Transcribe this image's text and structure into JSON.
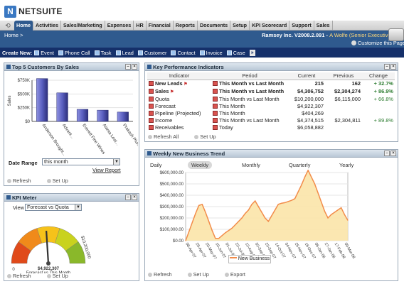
{
  "brand": {
    "name": "NETSUITE",
    "mark": "N"
  },
  "nav": {
    "tabs": [
      "Home",
      "Activities",
      "Sales/Marketing",
      "Expenses",
      "HR",
      "Financial",
      "Reports",
      "Documents",
      "Setup",
      "KPI Scorecard",
      "Support",
      "Sales"
    ],
    "active": "Home"
  },
  "subheader": {
    "breadcrumb": "Home >",
    "account": "Ramsey Inc. V2008.2.091 -",
    "user": "A Wolfe (Senior Executive)",
    "customize": "Customize this Page"
  },
  "create_new": {
    "label": "Create New:",
    "items": [
      "Event",
      "Phone Call",
      "Task",
      "Lead",
      "Customer",
      "Contact",
      "Invoice",
      "Case"
    ],
    "more": "»"
  },
  "top_customers": {
    "title": "Top 5 Customers By Sales",
    "date_range_label": "Date Range",
    "date_range_value": "this month",
    "view_report": "View Report",
    "refresh": "Refresh",
    "setup": "Set Up",
    "chart_data": {
      "type": "bar",
      "categories": [
        "Anderson Brought...",
        "Advant...",
        "Everett Fine Wines",
        "Alanta Leat...",
        "Prakash Plumb..."
      ],
      "values": [
        780000,
        520000,
        220000,
        205000,
        170000
      ],
      "ylabel": "Sales",
      "ylim": [
        0,
        750000
      ],
      "yticks": [
        "$750K",
        "$500K",
        "$250K",
        "$0"
      ],
      "colors": {
        "bar": "#5a5fc0"
      }
    }
  },
  "kpi_meter": {
    "title": "KPI Meter",
    "view_label": "View",
    "view_value": "Forecast vs Quota",
    "dial_min": "0",
    "dial_max": "$10,200,000",
    "value": "$4,922,307",
    "caption": "Forecast vs This Month",
    "fraction": 0.48,
    "refresh": "Refresh",
    "setup": "Set Up"
  },
  "kpis": {
    "title": "Key Performance Indicators",
    "columns": [
      "Indicator",
      "Period",
      "Current",
      "Previous",
      "Change"
    ],
    "rows": [
      {
        "indicator": "New Leads",
        "period": "This Month vs Last Month",
        "current": "215",
        "previous": "162",
        "change": "+ 32.7%",
        "bold": true,
        "flag": true
      },
      {
        "indicator": "Sales",
        "period": "This Month vs Last Month",
        "current": "$4,306,752",
        "previous": "$2,304,274",
        "change": "+ 86.9%",
        "bold": true,
        "flag": true
      },
      {
        "indicator": "Quota",
        "period": "This Month vs Last Month",
        "current": "$10,200,000",
        "previous": "$6,115,000",
        "change": "+ 66.8%",
        "bold": false,
        "flag": false
      },
      {
        "indicator": "Forecast",
        "period": "This Month",
        "current": "$4,922,307",
        "previous": "",
        "change": "",
        "bold": false,
        "flag": false
      },
      {
        "indicator": "Pipeline (Projected)",
        "period": "This Month",
        "current": "$404,269",
        "previous": "",
        "change": "",
        "bold": false,
        "flag": false
      },
      {
        "indicator": "Income",
        "period": "This Month vs Last Month",
        "current": "$4,374,515",
        "previous": "$2,304,811",
        "change": "+ 89.8%",
        "bold": false,
        "flag": false
      },
      {
        "indicator": "Receivables",
        "period": "Today",
        "current": "$6,058,882",
        "previous": "",
        "change": "",
        "bold": false,
        "flag": false
      }
    ],
    "refresh": "Refresh All",
    "setup": "Set Up"
  },
  "trend": {
    "title": "Weekly New Business Trend",
    "periods": [
      "Daily",
      "Weekly",
      "Monthly",
      "Quarterly",
      "Yearly"
    ],
    "selected": "Weekly",
    "legend": "New Business",
    "refresh": "Refresh",
    "setup": "Set Up",
    "export": "Export",
    "chart_data": {
      "type": "area",
      "x": [
        "08-Apr-07",
        "15-Apr-07",
        "22-Apr-07",
        "29-Apr-07",
        "06-May-07",
        "13-May-07",
        "20-May-07",
        "27-May-07",
        "03-Jun-07",
        "10-Jun-07",
        "17-Jun-07",
        "24-Jun-07",
        "01-Jul-07",
        "08-Jul-07",
        "15-Jul-07",
        "22-Jul-07",
        "29-Jul-07",
        "05-Aug-07",
        "12-Aug-07",
        "19-Aug-07",
        "26-Aug-07",
        "02-Sep-07",
        "09-Sep-07",
        "16-Sep-07",
        "23-Sep-07",
        "30-Sep-07",
        "07-Oct-07",
        "14-Oct-07",
        "21-Oct-07",
        "28-Oct-07",
        "04-Nov-07",
        "11-Nov-07",
        "18-Nov-07",
        "25-Nov-07",
        "02-Dec-07",
        "09-Dec-07",
        "16-Dec-07",
        "23-Dec-07",
        "30-Dec-07",
        "06-Jan-08",
        "13-Jan-08",
        "20-Jan-08",
        "27-Jan-08",
        "03-Feb-08",
        "10-Feb-08",
        "17-Feb-08",
        "24-Feb-08",
        "02-Mar-08",
        "09-Mar-08",
        "16-Mar-08"
      ],
      "series": [
        {
          "name": "New Business",
          "values": [
            0,
            80000,
            160000,
            240000,
            310000,
            320000,
            250000,
            170000,
            90000,
            20000,
            20000,
            45000,
            70000,
            90000,
            110000,
            140000,
            170000,
            200000,
            240000,
            270000,
            320000,
            350000,
            300000,
            250000,
            200000,
            170000,
            220000,
            270000,
            320000,
            330000,
            335000,
            345000,
            355000,
            370000,
            430000,
            490000,
            560000,
            620000,
            560000,
            500000,
            420000,
            340000,
            260000,
            200000,
            230000,
            250000,
            270000,
            290000,
            230000,
            180000
          ]
        }
      ],
      "ylim": [
        0,
        600000
      ],
      "yticks": [
        "$600,000.00",
        "$500,000.00",
        "$400,000.00",
        "$300,000.00",
        "$200,000.00",
        "$100,000.00",
        "$0.00"
      ],
      "xticks": [
        "08-Apr-07",
        "29-Apr-07",
        "20-May-07",
        "10-Jun-07",
        "01-Jul-07",
        "22-Jul-07",
        "12-Aug-07",
        "02-Sep-07",
        "23-Sep-07",
        "14-Oct-07",
        "04-Nov-07",
        "25-Nov-07",
        "16-Dec-07",
        "06-Jan-08",
        "27-Jan-08",
        "17-Feb-08",
        "09-Mar-08"
      ],
      "colors": {
        "line": "#f28c4a",
        "fill": "#fbe4a8"
      }
    }
  }
}
